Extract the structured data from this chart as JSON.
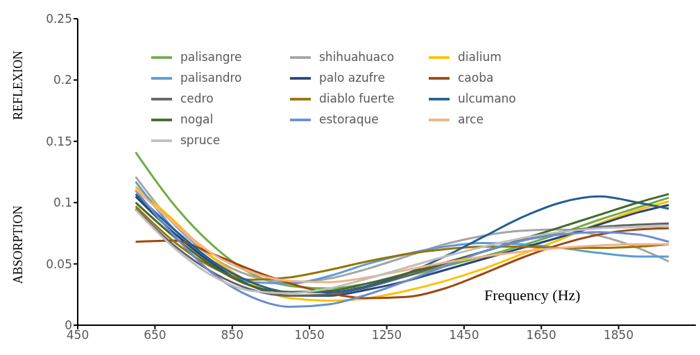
{
  "chart_data": {
    "type": "line",
    "xlabel": "Frequency  (Hz)",
    "ylabel": "ABSORPTION",
    "annotations": [
      "REFLEXION"
    ],
    "x": [
      600,
      700,
      800,
      900,
      1000,
      1100,
      1200,
      1300,
      1400,
      1500,
      1600,
      1700,
      1800,
      1900,
      1980
    ],
    "xlim": [
      450,
      2050
    ],
    "xticks": [
      450,
      650,
      850,
      1050,
      1250,
      1450,
      1650,
      1850
    ],
    "ylim": [
      0,
      0.25
    ],
    "yticks": [
      0,
      0.05,
      0.1,
      0.15,
      0.2,
      0.25
    ],
    "grid": false,
    "legend": "top",
    "marker": "none",
    "line_style": "solid",
    "series": [
      {
        "name": "palisangre",
        "color": "#70ad47",
        "values": [
          0.141,
          0.098,
          0.065,
          0.042,
          0.032,
          0.03,
          0.034,
          0.04,
          0.048,
          0.056,
          0.065,
          0.075,
          0.086,
          0.096,
          0.104
        ]
      },
      {
        "name": "shihuahuaco",
        "color": "#a5a5a5",
        "values": [
          0.121,
          0.082,
          0.055,
          0.04,
          0.035,
          0.038,
          0.046,
          0.056,
          0.066,
          0.073,
          0.077,
          0.078,
          0.073,
          0.063,
          0.052
        ]
      },
      {
        "name": "dialium",
        "color": "#ffc000",
        "values": [
          0.113,
          0.085,
          0.055,
          0.034,
          0.022,
          0.02,
          0.022,
          0.028,
          0.036,
          0.046,
          0.058,
          0.07,
          0.083,
          0.094,
          0.101
        ]
      },
      {
        "name": "palisandro",
        "color": "#5b9bd5",
        "values": [
          0.117,
          0.078,
          0.05,
          0.035,
          0.034,
          0.04,
          0.05,
          0.058,
          0.064,
          0.067,
          0.066,
          0.063,
          0.059,
          0.056,
          0.056
        ]
      },
      {
        "name": "palo azufre",
        "color": "#264478",
        "values": [
          0.105,
          0.075,
          0.05,
          0.032,
          0.024,
          0.024,
          0.029,
          0.036,
          0.045,
          0.054,
          0.063,
          0.072,
          0.082,
          0.092,
          0.098
        ]
      },
      {
        "name": "caoba",
        "color": "#9e480e",
        "values": [
          0.068,
          0.069,
          0.058,
          0.045,
          0.034,
          0.026,
          0.022,
          0.023,
          0.03,
          0.042,
          0.055,
          0.066,
          0.074,
          0.078,
          0.079
        ]
      },
      {
        "name": "cedro",
        "color": "#636363",
        "values": [
          0.095,
          0.065,
          0.043,
          0.029,
          0.024,
          0.025,
          0.031,
          0.04,
          0.05,
          0.06,
          0.069,
          0.076,
          0.08,
          0.082,
          0.083
        ]
      },
      {
        "name": "diablo fuerte",
        "color": "#997300",
        "values": [
          0.097,
          0.068,
          0.047,
          0.037,
          0.039,
          0.045,
          0.052,
          0.058,
          0.062,
          0.064,
          0.064,
          0.063,
          0.063,
          0.064,
          0.066
        ]
      },
      {
        "name": "ulcumano",
        "color": "#255e91",
        "values": [
          0.107,
          0.078,
          0.052,
          0.035,
          0.027,
          0.027,
          0.032,
          0.042,
          0.056,
          0.072,
          0.088,
          0.1,
          0.105,
          0.1,
          0.095
        ]
      },
      {
        "name": "nogal",
        "color": "#43682b",
        "values": [
          0.1,
          0.072,
          0.048,
          0.032,
          0.027,
          0.028,
          0.034,
          0.042,
          0.051,
          0.06,
          0.07,
          0.08,
          0.09,
          0.1,
          0.107
        ]
      },
      {
        "name": "estoraque",
        "color": "#698ed0",
        "values": [
          0.11,
          0.073,
          0.042,
          0.023,
          0.015,
          0.017,
          0.025,
          0.036,
          0.048,
          0.06,
          0.069,
          0.074,
          0.076,
          0.074,
          0.068
        ]
      },
      {
        "name": "arce",
        "color": "#f4b183",
        "values": [
          0.111,
          0.083,
          0.058,
          0.043,
          0.036,
          0.035,
          0.039,
          0.045,
          0.051,
          0.056,
          0.06,
          0.063,
          0.065,
          0.066,
          0.066
        ]
      },
      {
        "name": "spruce",
        "color": "#bfbfbf",
        "values": [
          0.094,
          0.063,
          0.04,
          0.028,
          0.026,
          0.03,
          0.038,
          0.047,
          0.056,
          0.064,
          0.071,
          0.076,
          0.079,
          0.08,
          0.081
        ]
      }
    ]
  }
}
